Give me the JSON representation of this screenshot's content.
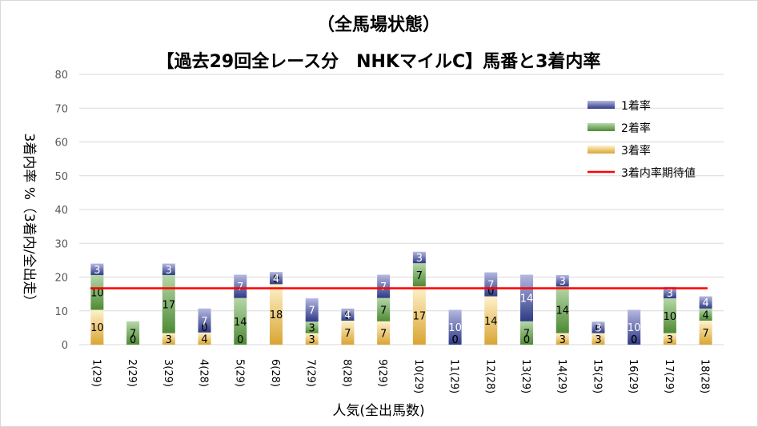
{
  "chart_data": {
    "type": "bar",
    "stacked": true,
    "title": "（全馬場状態）",
    "subtitle": "【過去29回全レース分　NHKマイルC】馬番と3着内率",
    "xlabel": "人気(全出馬数)",
    "ylabel": "3着内率 %（3着内/全出走）",
    "ylim": [
      0,
      80
    ],
    "yticks": [
      0,
      10,
      20,
      30,
      40,
      50,
      60,
      70,
      80
    ],
    "grid": true,
    "legend_position": "top-right",
    "categories": [
      "1(29)",
      "2(29)",
      "3(29)",
      "4(28)",
      "5(29)",
      "6(28)",
      "7(29)",
      "8(28)",
      "9(29)",
      "10(29)",
      "11(29)",
      "12(28)",
      "13(29)",
      "14(29)",
      "15(29)",
      "16(29)",
      "17(29)",
      "18(28)"
    ],
    "series": [
      {
        "name": "3着率",
        "color": "#e8b94a",
        "values": [
          10.3,
          0,
          3.4,
          3.6,
          0,
          17.9,
          3.4,
          7.1,
          6.9,
          17.2,
          0,
          14.3,
          0,
          3.4,
          3.4,
          0,
          3.4,
          7.1
        ],
        "labels": [
          "10",
          "0",
          "3",
          "4",
          "0",
          "18",
          "3",
          "7",
          "7",
          "17",
          "0",
          "14",
          "0",
          "3",
          "3",
          "0",
          "3",
          "7"
        ]
      },
      {
        "name": "2着率",
        "color": "#6aa84f",
        "values": [
          10.3,
          6.9,
          17.2,
          0,
          13.8,
          0,
          3.4,
          0,
          6.9,
          6.9,
          0,
          0,
          6.9,
          13.8,
          0,
          0,
          10.3,
          3.6
        ],
        "labels": [
          "10",
          "7",
          "17",
          "0",
          "14",
          "0",
          "3",
          "0",
          "7",
          "7",
          "0",
          "0",
          "7",
          "14",
          "0",
          "0",
          "10",
          "4"
        ]
      },
      {
        "name": "1着率",
        "color": "#4a559f",
        "values": [
          3.4,
          0,
          3.4,
          7.1,
          6.9,
          3.6,
          6.9,
          3.6,
          6.9,
          3.4,
          10.3,
          7.1,
          13.8,
          3.4,
          3.4,
          10.3,
          3.4,
          3.6
        ],
        "labels": [
          "3",
          "0",
          "3",
          "7",
          "7",
          "4",
          "7",
          "4",
          "7",
          "3",
          "10",
          "7",
          "14",
          "3",
          "3",
          "10",
          "3",
          "4"
        ]
      }
    ],
    "reference_line": {
      "name": "3着内率期待値",
      "value": 16.7,
      "color": "#ff0000"
    }
  }
}
